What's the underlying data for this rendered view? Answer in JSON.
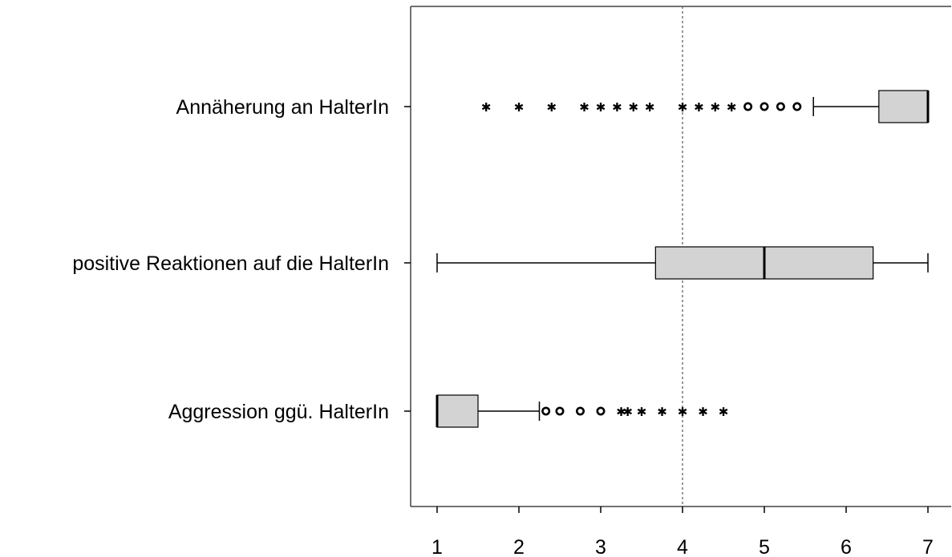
{
  "chart_data": {
    "type": "boxplot",
    "orientation": "horizontal",
    "xlim": [
      1,
      7
    ],
    "x_ticks": [
      "1",
      "2",
      "3",
      "4",
      "5",
      "6",
      "7"
    ],
    "reference_line": {
      "value": 4,
      "style": "dotted"
    },
    "grid": false,
    "colors": {
      "box_fill": "#d3d3d3",
      "stroke": "#000000",
      "reference": "#555555"
    },
    "series": [
      {
        "name": "Annäherung an HalterIn",
        "whisker_low": 5.6,
        "q1": 6.4,
        "median": 7.0,
        "q3": 7.0,
        "whisker_high": 7.0,
        "outliers_circle": [
          4.8,
          5.0,
          5.2,
          5.4
        ],
        "outliers_star": [
          1.6,
          2.0,
          2.4,
          2.8,
          3.0,
          3.2,
          3.4,
          3.6,
          4.0,
          4.2,
          4.4,
          4.6
        ]
      },
      {
        "name": "positive Reaktionen auf die HalterIn",
        "whisker_low": 1.0,
        "q1": 3.67,
        "median": 5.0,
        "q3": 6.33,
        "whisker_high": 7.0,
        "outliers_circle": [],
        "outliers_star": []
      },
      {
        "name": "Aggression ggü. HalterIn",
        "whisker_low": 1.0,
        "q1": 1.0,
        "median": 1.0,
        "q3": 1.5,
        "whisker_high": 2.25,
        "outliers_circle": [
          2.33,
          2.5,
          2.75,
          3.0
        ],
        "outliers_star": [
          3.25,
          3.33,
          3.5,
          3.75,
          4.0,
          4.25,
          4.5
        ]
      }
    ]
  }
}
